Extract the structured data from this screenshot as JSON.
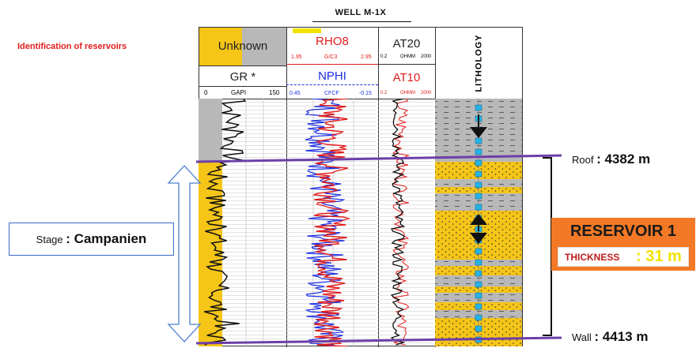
{
  "well_title": "WELL M-1X",
  "identification_label": "Identification of reservoirs",
  "header": {
    "gr_unknown": "Unknown",
    "gr_title": "GR *",
    "gr_scale": {
      "min": "0",
      "unit": "GAPI",
      "max": "150"
    },
    "rhob_title": "RHO8",
    "rhob_scale": {
      "min": "1.95",
      "unit": "G/C3",
      "max": "2.95"
    },
    "nphi_title": "NPHI",
    "nphi_scale": {
      "min": "0.45",
      "unit": "CFCF",
      "max": "-0.15"
    },
    "at20_title": "AT20",
    "at20_scale": {
      "min": "0.2",
      "unit": "OHMM",
      "max": "2000"
    },
    "at10_title": "AT10",
    "at10_scale": {
      "min": "0.2",
      "unit": "OHMM",
      "max": "2000"
    },
    "lithology_title": "LITHOLOGY"
  },
  "stage": {
    "label": "Stage",
    "value": ": Campanien"
  },
  "roof": {
    "label": "Roof",
    "value": ": 4382 m"
  },
  "wall": {
    "label": "Wall",
    "value": ": 4413 m"
  },
  "reservoir": {
    "title": "RESERVOIR 1",
    "thickness_label": "THICKNESS",
    "thickness_value": ": 31 m"
  },
  "colors": {
    "reservoir_yellow": "#f5c518",
    "shale_gray": "#b8b8b8",
    "marker_purple": "#6d3fa8",
    "rhob_red": "#e11d1d",
    "nphi_blue": "#1d2fe1",
    "reservoir_orange": "#f37926"
  }
}
